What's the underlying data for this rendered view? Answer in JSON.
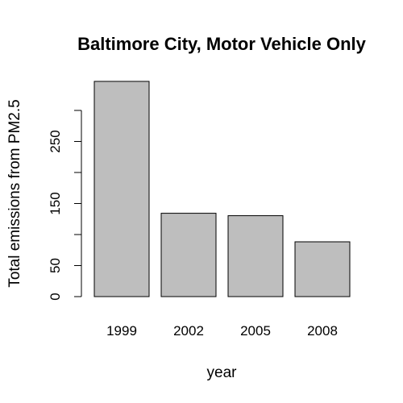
{
  "chart_data": {
    "type": "bar",
    "title": "Baltimore City, Motor Vehicle Only",
    "xlabel": "year",
    "ylabel": "Total emissions from PM2.5",
    "categories": [
      "1999",
      "2002",
      "2005",
      "2008"
    ],
    "values": [
      346.8,
      134.3,
      130.4,
      88.3
    ],
    "yticks": [
      0,
      50,
      100,
      150,
      200,
      250,
      300
    ],
    "ytick_labels": [
      "0",
      "50",
      "",
      "150",
      "",
      "250",
      ""
    ],
    "ylim": [
      0,
      360
    ],
    "grid": false,
    "legend": "none",
    "bar_fill": "#bebebe",
    "bar_stroke": "#000000"
  }
}
